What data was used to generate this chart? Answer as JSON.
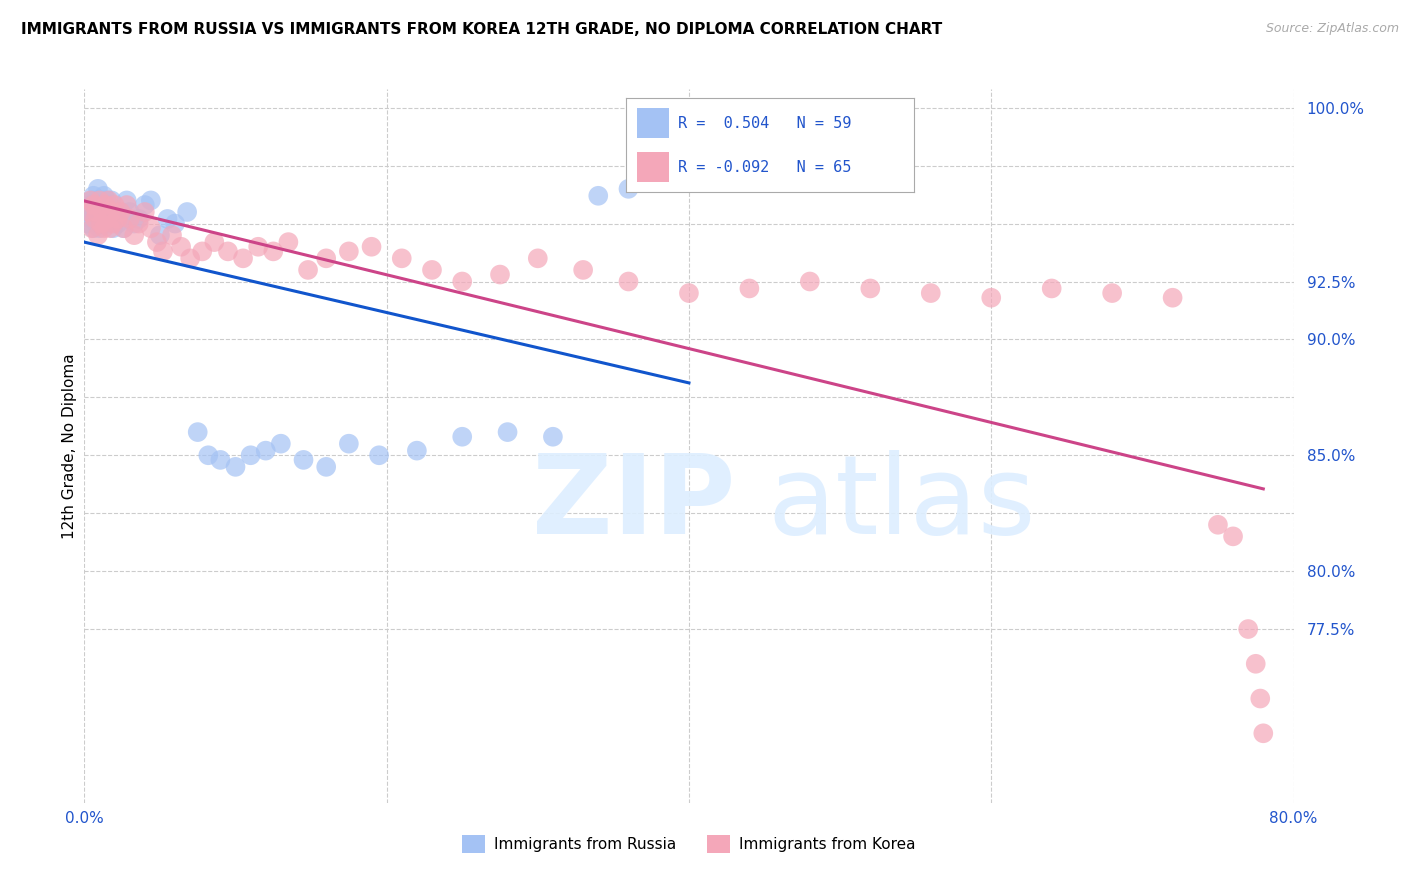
{
  "title": "IMMIGRANTS FROM RUSSIA VS IMMIGRANTS FROM KOREA 12TH GRADE, NO DIPLOMA CORRELATION CHART",
  "source": "Source: ZipAtlas.com",
  "ylabel": "12th Grade, No Diploma",
  "russia_label": "Immigrants from Russia",
  "korea_label": "Immigrants from Korea",
  "russia_R": "0.504",
  "russia_N": "59",
  "korea_R": "-0.092",
  "korea_N": "65",
  "russia_color": "#a4c2f4",
  "korea_color": "#f4a7b9",
  "russia_line_color": "#1155cc",
  "korea_line_color": "#cc4488",
  "xlim": [
    0.0,
    0.8
  ],
  "ylim": [
    0.7,
    1.008
  ],
  "russia_x": [
    0.002,
    0.003,
    0.004,
    0.005,
    0.005,
    0.006,
    0.006,
    0.007,
    0.007,
    0.008,
    0.008,
    0.009,
    0.009,
    0.01,
    0.01,
    0.011,
    0.012,
    0.012,
    0.013,
    0.013,
    0.014,
    0.015,
    0.016,
    0.017,
    0.018,
    0.019,
    0.02,
    0.022,
    0.024,
    0.026,
    0.028,
    0.03,
    0.033,
    0.036,
    0.04,
    0.044,
    0.05,
    0.055,
    0.06,
    0.068,
    0.075,
    0.082,
    0.09,
    0.1,
    0.11,
    0.12,
    0.13,
    0.145,
    0.16,
    0.175,
    0.195,
    0.22,
    0.25,
    0.28,
    0.31,
    0.34,
    0.36,
    0.38,
    0.395
  ],
  "russia_y": [
    0.95,
    0.955,
    0.958,
    0.952,
    0.96,
    0.948,
    0.962,
    0.953,
    0.955,
    0.95,
    0.96,
    0.958,
    0.965,
    0.948,
    0.952,
    0.955,
    0.95,
    0.96,
    0.958,
    0.962,
    0.955,
    0.96,
    0.95,
    0.955,
    0.96,
    0.948,
    0.952,
    0.95,
    0.955,
    0.948,
    0.96,
    0.955,
    0.95,
    0.952,
    0.958,
    0.96,
    0.945,
    0.952,
    0.95,
    0.955,
    0.86,
    0.85,
    0.848,
    0.845,
    0.85,
    0.852,
    0.855,
    0.848,
    0.845,
    0.855,
    0.85,
    0.852,
    0.858,
    0.86,
    0.858,
    0.962,
    0.965,
    0.97,
    0.998
  ],
  "korea_x": [
    0.003,
    0.004,
    0.005,
    0.006,
    0.007,
    0.008,
    0.009,
    0.01,
    0.011,
    0.012,
    0.013,
    0.014,
    0.015,
    0.016,
    0.017,
    0.018,
    0.019,
    0.02,
    0.022,
    0.024,
    0.026,
    0.028,
    0.03,
    0.033,
    0.036,
    0.04,
    0.044,
    0.048,
    0.052,
    0.058,
    0.064,
    0.07,
    0.078,
    0.086,
    0.095,
    0.105,
    0.115,
    0.125,
    0.135,
    0.148,
    0.16,
    0.175,
    0.19,
    0.21,
    0.23,
    0.25,
    0.275,
    0.3,
    0.33,
    0.36,
    0.4,
    0.44,
    0.48,
    0.52,
    0.56,
    0.6,
    0.64,
    0.68,
    0.72,
    0.75,
    0.76,
    0.77,
    0.775,
    0.778,
    0.78
  ],
  "korea_y": [
    0.955,
    0.96,
    0.948,
    0.958,
    0.952,
    0.955,
    0.945,
    0.96,
    0.95,
    0.955,
    0.948,
    0.958,
    0.952,
    0.96,
    0.948,
    0.955,
    0.95,
    0.958,
    0.952,
    0.955,
    0.948,
    0.958,
    0.952,
    0.945,
    0.95,
    0.955,
    0.948,
    0.942,
    0.938,
    0.945,
    0.94,
    0.935,
    0.938,
    0.942,
    0.938,
    0.935,
    0.94,
    0.938,
    0.942,
    0.93,
    0.935,
    0.938,
    0.94,
    0.935,
    0.93,
    0.925,
    0.928,
    0.935,
    0.93,
    0.925,
    0.92,
    0.922,
    0.925,
    0.922,
    0.92,
    0.918,
    0.922,
    0.92,
    0.918,
    0.82,
    0.815,
    0.775,
    0.76,
    0.745,
    0.73
  ]
}
